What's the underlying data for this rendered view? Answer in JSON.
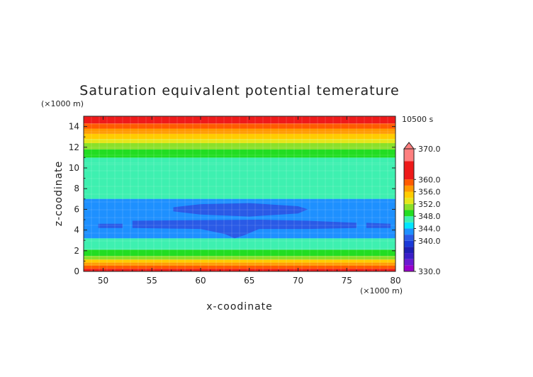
{
  "chart_data": {
    "type": "contour",
    "title": "Saturation equivalent potential temerature",
    "xlabel": "x-coodinate",
    "ylabel": "z-coodinate",
    "x_unit": "(×1000 m)",
    "y_unit": "(×1000 m)",
    "time_label": "10500 s",
    "xlim": [
      48,
      80
    ],
    "ylim": [
      0,
      15
    ],
    "x_ticks": [
      50,
      55,
      60,
      65,
      70,
      75,
      80
    ],
    "y_ticks": [
      0,
      2,
      4,
      6,
      8,
      10,
      12,
      14
    ],
    "colorbar": {
      "min": 330,
      "max": 370,
      "labels": [
        "370.0",
        "360.0",
        "356.0",
        "352.0",
        "348.0",
        "344.0",
        "340.0",
        "330.0"
      ],
      "label_values": [
        370,
        360,
        356,
        352,
        348,
        344,
        340,
        330
      ],
      "bands": [
        {
          "lo": 330,
          "hi": 332,
          "color": "#9900cc"
        },
        {
          "lo": 332,
          "hi": 334,
          "color": "#6a1ad0"
        },
        {
          "lo": 334,
          "hi": 336,
          "color": "#3a1ec8"
        },
        {
          "lo": 336,
          "hi": 338,
          "color": "#1f1fb4"
        },
        {
          "lo": 338,
          "hi": 340,
          "color": "#1a3ad8"
        },
        {
          "lo": 340,
          "hi": 342,
          "color": "#2a5ae6"
        },
        {
          "lo": 342,
          "hi": 344,
          "color": "#1e90ff"
        },
        {
          "lo": 344,
          "hi": 346,
          "color": "#00e5ff"
        },
        {
          "lo": 346,
          "hi": 348,
          "color": "#3ef0b0"
        },
        {
          "lo": 348,
          "hi": 350,
          "color": "#22dd22"
        },
        {
          "lo": 350,
          "hi": 352,
          "color": "#8ae02a"
        },
        {
          "lo": 352,
          "hi": 354,
          "color": "#e6e61a"
        },
        {
          "lo": 354,
          "hi": 356,
          "color": "#ffcc00"
        },
        {
          "lo": 356,
          "hi": 358,
          "color": "#ff9900"
        },
        {
          "lo": 358,
          "hi": 360,
          "color": "#ff5a00"
        },
        {
          "lo": 360,
          "hi": 366,
          "color": "#ee1a1a"
        },
        {
          "lo": 366,
          "hi": 370,
          "color": "#ff7f7f"
        }
      ]
    },
    "layers": [
      {
        "z0": 0.0,
        "z1": 0.25,
        "value": 360
      },
      {
        "z0": 0.25,
        "z1": 0.55,
        "value": 358
      },
      {
        "z0": 0.55,
        "z1": 0.85,
        "value": 356
      },
      {
        "z0": 0.85,
        "z1": 1.15,
        "value": 354
      },
      {
        "z0": 1.15,
        "z1": 1.5,
        "value": 350
      },
      {
        "z0": 1.5,
        "z1": 2.1,
        "value": 348
      },
      {
        "z0": 2.1,
        "z1": 3.2,
        "value": 346
      },
      {
        "z0": 3.2,
        "z1": 7.0,
        "value": 344
      },
      {
        "z0": 7.0,
        "z1": 10.3,
        "value": 346
      },
      {
        "z0": 10.3,
        "z1": 11.0,
        "value": 347
      },
      {
        "z0": 11.0,
        "z1": 11.8,
        "value": 348
      },
      {
        "z0": 11.8,
        "z1": 12.4,
        "value": 350
      },
      {
        "z0": 12.4,
        "z1": 12.8,
        "value": 352
      },
      {
        "z0": 12.8,
        "z1": 13.3,
        "value": 354
      },
      {
        "z0": 13.3,
        "z1": 13.8,
        "value": 356
      },
      {
        "z0": 13.8,
        "z1": 14.3,
        "value": 358
      },
      {
        "z0": 14.3,
        "z1": 15.0,
        "value": 360
      }
    ],
    "regions": [
      {
        "value": 342,
        "points": [
          [
            48,
            7.0
          ],
          [
            80,
            7.0
          ],
          [
            80,
            3.2
          ],
          [
            48,
            3.2
          ]
        ]
      },
      {
        "value": 340,
        "points": [
          [
            57.2,
            6.2
          ],
          [
            60,
            6.5
          ],
          [
            65,
            6.6
          ],
          [
            70,
            6.3
          ],
          [
            71,
            6.0
          ],
          [
            70,
            5.6
          ],
          [
            65,
            5.3
          ],
          [
            60,
            5.5
          ],
          [
            57.2,
            5.8
          ]
        ]
      },
      {
        "value": 340,
        "points": [
          [
            49.5,
            4.6
          ],
          [
            52,
            4.6
          ],
          [
            52,
            4.2
          ],
          [
            49.5,
            4.2
          ]
        ]
      },
      {
        "value": 340,
        "points": [
          [
            53,
            4.9
          ],
          [
            66,
            5.0
          ],
          [
            71,
            4.9
          ],
          [
            76,
            4.7
          ],
          [
            76,
            4.2
          ],
          [
            71,
            4.1
          ],
          [
            66,
            4.1
          ],
          [
            64.5,
            3.5
          ],
          [
            63.5,
            3.2
          ],
          [
            62.5,
            3.6
          ],
          [
            60,
            4.1
          ],
          [
            53,
            4.2
          ]
        ]
      },
      {
        "value": 340,
        "points": [
          [
            77,
            4.7
          ],
          [
            79.5,
            4.6
          ],
          [
            79.5,
            4.2
          ],
          [
            77,
            4.2
          ]
        ]
      }
    ]
  }
}
